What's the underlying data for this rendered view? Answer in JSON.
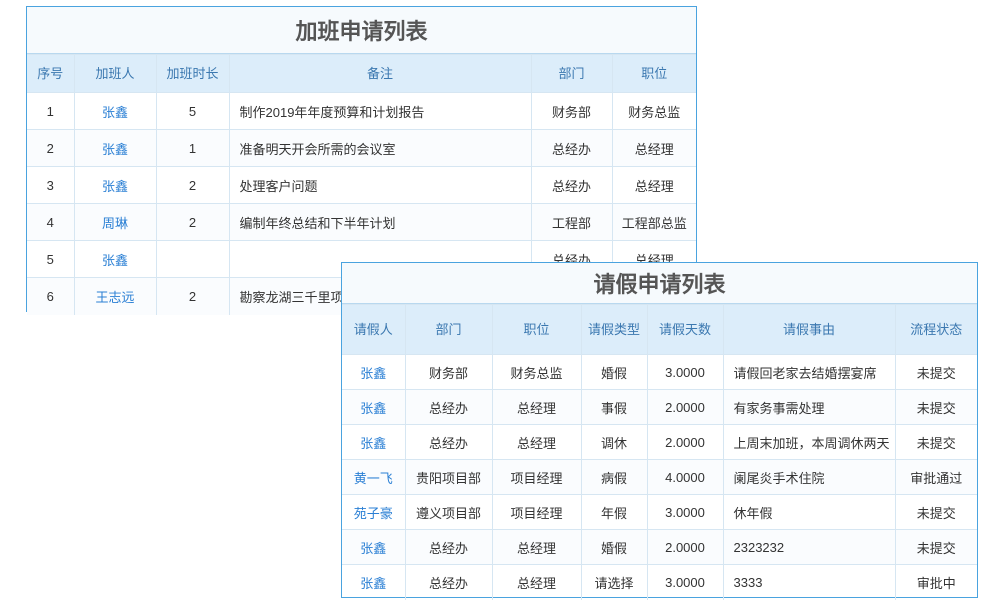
{
  "overtime": {
    "title": "加班申请列表",
    "headers": [
      "序号",
      "加班人",
      "加班时长",
      "备注",
      "部门",
      "职位"
    ],
    "rows": [
      [
        "1",
        "张鑫",
        "5",
        "制作2019年年度预算和计划报告",
        "财务部",
        "财务总监"
      ],
      [
        "2",
        "张鑫",
        "1",
        "准备明天开会所需的会议室",
        "总经办",
        "总经理"
      ],
      [
        "3",
        "张鑫",
        "2",
        "处理客户问题",
        "总经办",
        "总经理"
      ],
      [
        "4",
        "周琳",
        "2",
        "编制年终总结和下半年计划",
        "工程部",
        "工程部总监"
      ],
      [
        "5",
        "张鑫",
        null,
        null,
        "总经办",
        "总经理"
      ],
      [
        "6",
        "王志远",
        "2",
        "勘察龙湖三千里项",
        null,
        null
      ]
    ]
  },
  "leave": {
    "title": "请假申请列表",
    "headers": [
      "请假人",
      "部门",
      "职位",
      "请假类型",
      "请假天数",
      "请假事由",
      "流程状态"
    ],
    "rows": [
      [
        "张鑫",
        "财务部",
        "财务总监",
        "婚假",
        "3.0000",
        "请假回老家去结婚摆宴席",
        "未提交"
      ],
      [
        "张鑫",
        "总经办",
        "总经理",
        "事假",
        "2.0000",
        "有家务事需处理",
        "未提交"
      ],
      [
        "张鑫",
        "总经办",
        "总经理",
        "调休",
        "2.0000",
        "上周末加班，本周调休两天",
        "未提交"
      ],
      [
        "黄一飞",
        "贵阳项目部",
        "项目经理",
        "病假",
        "4.0000",
        "阑尾炎手术住院",
        "审批通过"
      ],
      [
        "苑子豪",
        "遵义项目部",
        "项目经理",
        "年假",
        "3.0000",
        "休年假",
        "未提交"
      ],
      [
        "张鑫",
        "总经办",
        "总经理",
        "婚假",
        "2.0000",
        "2323232",
        "未提交"
      ],
      [
        "张鑫",
        "总经办",
        "总经理",
        "请选择",
        "3.0000",
        "3333",
        "审批中"
      ]
    ]
  }
}
